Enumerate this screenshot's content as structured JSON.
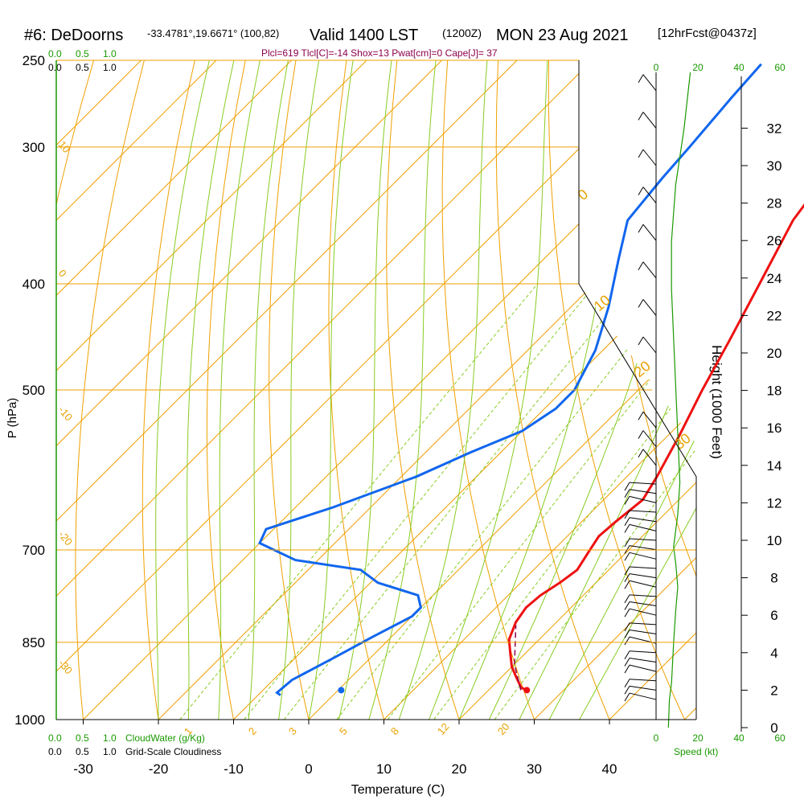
{
  "header": {
    "station": "#6: DeDoorns",
    "coords": "-33.4781°,19.6671° (100,82)",
    "valid": "Valid 1400 LST",
    "utc": "(1200Z)",
    "date": "MON 23 Aug 2021",
    "forecast": "[12hrFcst@0437z]",
    "indices": "Plcl=619 Tlcl[C]=-14 Shox=13 Pwat[cm]=0 Cape[J]= 37"
  },
  "top_scales": {
    "cloudwater_ticks": [
      "0.0",
      "0.5",
      "1.0"
    ],
    "cloudiness_ticks": [
      "0.0",
      "0.5",
      "1.0"
    ],
    "speed_ticks": [
      "0",
      "20",
      "40",
      "60"
    ]
  },
  "bottom_scales": {
    "cloudwater_ticks": [
      "0.0",
      "0.5",
      "1.0"
    ],
    "cloudwater_label": "CloudWater (g/Kg)",
    "cloudiness_ticks": [
      "0.0",
      "0.5",
      "1.0"
    ],
    "cloudiness_label": "Grid-Scale Cloudiness",
    "speed_ticks": [
      "0",
      "20",
      "40",
      "60"
    ],
    "speed_label": "Speed (kt)"
  },
  "chart_data": {
    "type": "line",
    "xlabel": "Temperature (C)",
    "ylabel": "P (hPa)",
    "y2label": "Height (1000 Feet)",
    "x_ticks": [
      -30,
      -20,
      -10,
      0,
      10,
      20,
      30,
      40
    ],
    "p_ticks": [
      250,
      300,
      400,
      500,
      700,
      850,
      1000
    ],
    "height_ticks": [
      0,
      2,
      4,
      6,
      8,
      10,
      12,
      14,
      16,
      18,
      20,
      22,
      24,
      26,
      28,
      30,
      32
    ],
    "ylim": [
      1000,
      250
    ],
    "y_scale": "log",
    "dry_adiabat_labels": [
      "10",
      "0",
      "-10",
      "-20",
      "-30"
    ],
    "mixing_ratio_labels": [
      "1",
      "2",
      "3",
      "5",
      "8",
      "12",
      "20"
    ],
    "right_labels": [
      "0",
      "10",
      "20",
      "30"
    ],
    "series": [
      {
        "name": "temperature",
        "color": "#ee1111",
        "points": [
          [
            25.1,
            940
          ],
          [
            24,
            935
          ],
          [
            22,
            915
          ],
          [
            20,
            895
          ],
          [
            18,
            870
          ],
          [
            16,
            845
          ],
          [
            14.6,
            815
          ],
          [
            14,
            790
          ],
          [
            14.3,
            770
          ],
          [
            15.2,
            750
          ],
          [
            15.8,
            730
          ],
          [
            15,
            705
          ],
          [
            14.2,
            680
          ],
          [
            14.5,
            660
          ],
          [
            15.2,
            630
          ],
          [
            14,
            600
          ],
          [
            11.5,
            550
          ],
          [
            8.5,
            500
          ],
          [
            5.5,
            450
          ],
          [
            2,
            400
          ],
          [
            -2,
            350
          ],
          [
            -4.5,
            300
          ],
          [
            -5.5,
            270
          ],
          [
            -4.5,
            252
          ]
        ]
      },
      {
        "name": "dewpoint",
        "color": "#1166ee",
        "points": [
          [
            -7,
            950
          ],
          [
            -7.8,
            945
          ],
          [
            -7.5,
            920
          ],
          [
            -5,
            880
          ],
          [
            -2.5,
            840
          ],
          [
            0,
            805
          ],
          [
            0,
            790
          ],
          [
            -2,
            770
          ],
          [
            -9,
            750
          ],
          [
            -13,
            730
          ],
          [
            -23,
            715
          ],
          [
            -30,
            690
          ],
          [
            -31,
            670
          ],
          [
            -25,
            640
          ],
          [
            -18,
            600
          ],
          [
            -14,
            570
          ],
          [
            -10,
            545
          ],
          [
            -8.5,
            520
          ],
          [
            -8.5,
            500
          ],
          [
            -11,
            460
          ],
          [
            -15,
            420
          ],
          [
            -20,
            380
          ],
          [
            -24,
            350
          ],
          [
            -25,
            320
          ],
          [
            -25.5,
            300
          ],
          [
            -26.5,
            270
          ],
          [
            -27,
            252
          ]
        ]
      },
      {
        "name": "parcel",
        "color": "#8b004b",
        "points": [
          [
            24.3,
            940
          ],
          [
            20,
            890
          ],
          [
            15,
            820
          ]
        ]
      }
    ],
    "surface_markers": [
      {
        "name": "surface-temperature",
        "t": 25.1,
        "p": 940
      },
      {
        "name": "surface-dewpoint",
        "t": 0.4,
        "p": 940
      }
    ],
    "wind_profile_heights": [
      1.5,
      2,
      2.5,
      3,
      3.5,
      4,
      4.5,
      5,
      5.5,
      6,
      6.5,
      7,
      7.5,
      8,
      8.5,
      9,
      9.5,
      10,
      10.5,
      11,
      11.5,
      12,
      12.5,
      13,
      14,
      15,
      16,
      20,
      22,
      24,
      26,
      28,
      30,
      32,
      34
    ]
  },
  "colors": {
    "isotherm": "#f0a000",
    "dry_adiabat": "#88cc22",
    "mixing_ratio": "#88cc22",
    "temperature": "#ee1111",
    "dewpoint": "#1166ee",
    "scale_green": "#1a9900",
    "indices": "#8b004b"
  }
}
